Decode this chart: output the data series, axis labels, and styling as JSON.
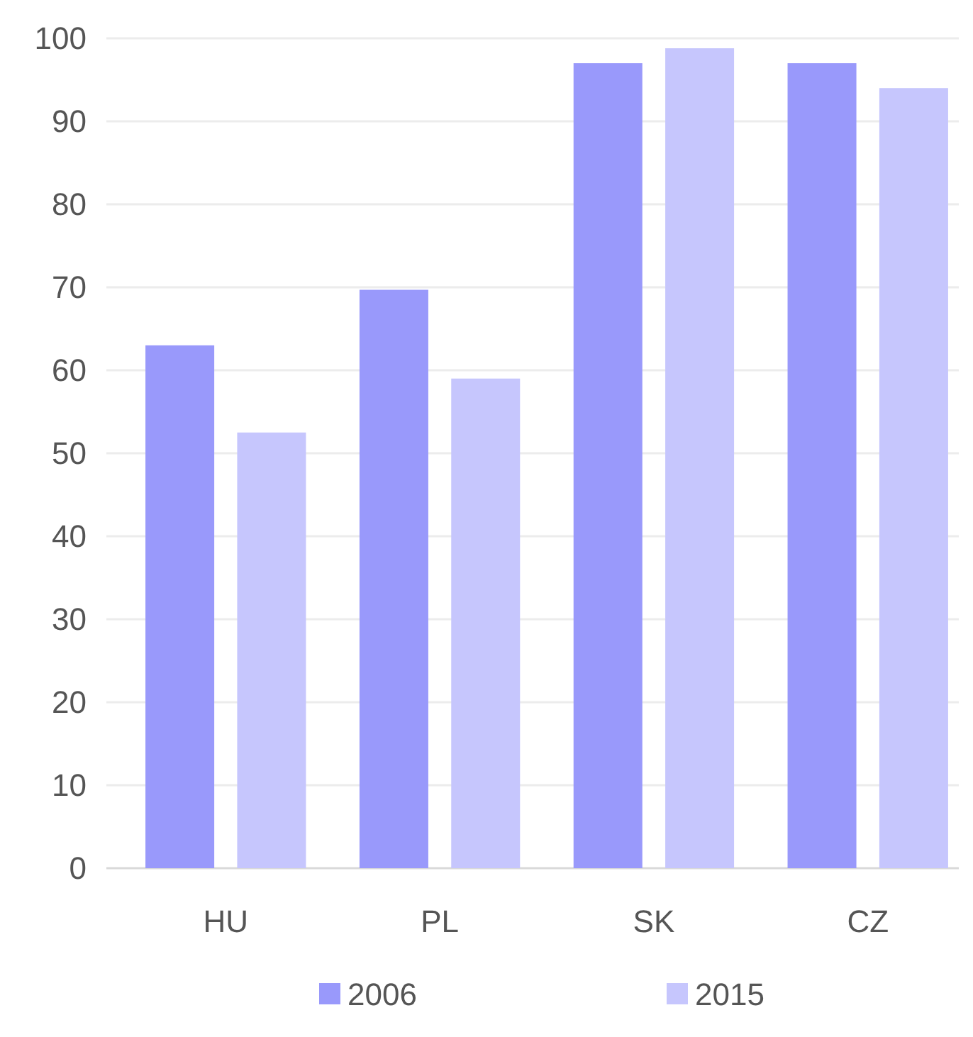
{
  "chart_data": {
    "type": "bar",
    "categories": [
      "HU",
      "PL",
      "SK",
      "CZ"
    ],
    "series": [
      {
        "name": "2006",
        "color": "#9999fb",
        "values": [
          63,
          69.7,
          97,
          97
        ]
      },
      {
        "name": "2015",
        "color": "#c6c6fd",
        "values": [
          52.5,
          59,
          98.8,
          94
        ]
      }
    ],
    "ylim": [
      0,
      100
    ],
    "yticks": [
      0,
      10,
      20,
      30,
      40,
      50,
      60,
      70,
      80,
      90,
      100
    ],
    "grid": "y",
    "legend": "bottom"
  }
}
